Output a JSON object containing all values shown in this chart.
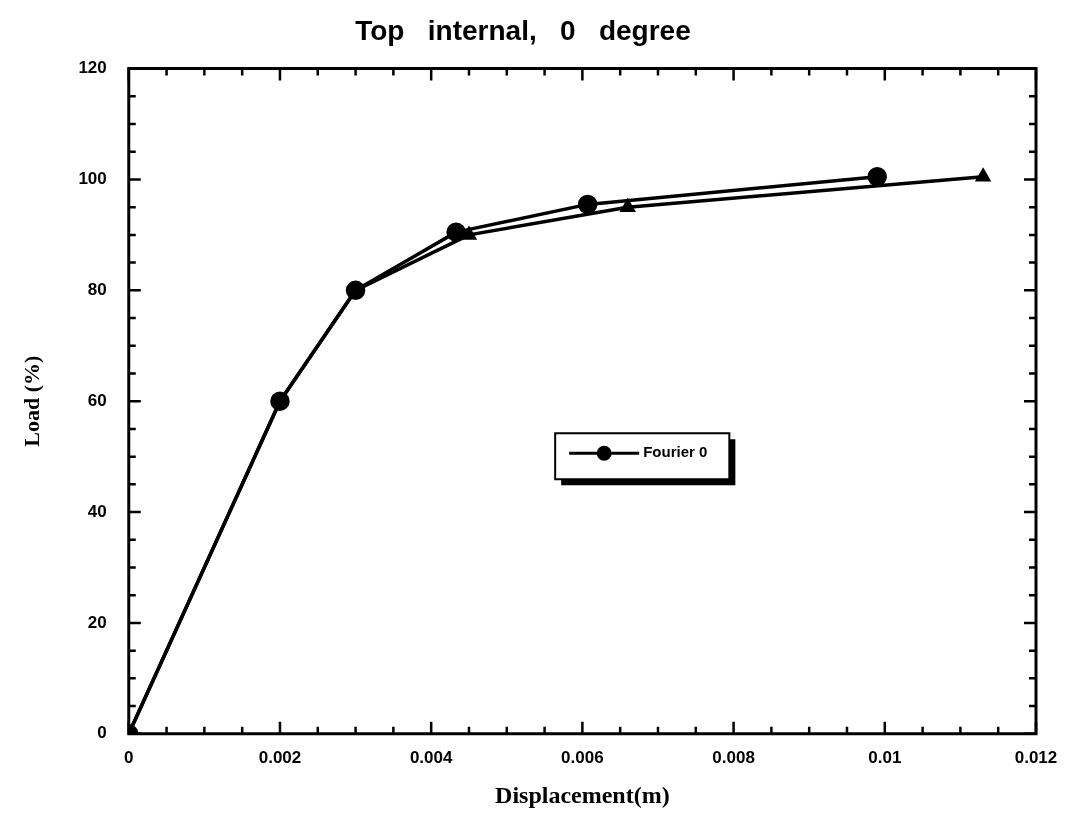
{
  "chart_data": {
    "type": "line",
    "title": "Top   internal,   0   degree",
    "xlabel": "Displacement(m)",
    "ylabel": "Load (%)",
    "xlim": [
      0,
      0.012
    ],
    "ylim": [
      0,
      120
    ],
    "xticks": [
      0,
      {
        "value": 0.0005,
        "label": null
      },
      {
        "value": 0.001,
        "label": null
      },
      {
        "value": 0.0015,
        "label": null
      },
      0.002,
      {
        "value": 0.0025,
        "label": null
      },
      {
        "value": 0.003,
        "label": null
      },
      {
        "value": 0.0035,
        "label": null
      },
      0.004,
      {
        "value": 0.0045,
        "label": null
      },
      {
        "value": 0.005,
        "label": null
      },
      {
        "value": 0.0055,
        "label": null
      },
      0.006,
      {
        "value": 0.0065,
        "label": null
      },
      {
        "value": 0.007,
        "label": null
      },
      {
        "value": 0.0075,
        "label": null
      },
      0.008,
      {
        "value": 0.0085,
        "label": null
      },
      {
        "value": 0.009,
        "label": null
      },
      {
        "value": 0.0095,
        "label": null
      },
      0.01,
      {
        "value": 0.0105,
        "label": null
      },
      {
        "value": 0.011,
        "label": null
      },
      {
        "value": 0.0115,
        "label": null
      },
      0.012
    ],
    "yticks": [
      0,
      {
        "value": 5,
        "label": null
      },
      {
        "value": 10,
        "label": null
      },
      {
        "value": 15,
        "label": null
      },
      20,
      {
        "value": 25,
        "label": null
      },
      {
        "value": 30,
        "label": null
      },
      {
        "value": 35,
        "label": null
      },
      40,
      {
        "value": 45,
        "label": null
      },
      {
        "value": 50,
        "label": null
      },
      {
        "value": 55,
        "label": null
      },
      60,
      {
        "value": 65,
        "label": null
      },
      {
        "value": 70,
        "label": null
      },
      {
        "value": 75,
        "label": null
      },
      80,
      {
        "value": 85,
        "label": null
      },
      {
        "value": 90,
        "label": null
      },
      {
        "value": 95,
        "label": null
      },
      100,
      {
        "value": 105,
        "label": null
      },
      {
        "value": 110,
        "label": null
      },
      {
        "value": 115,
        "label": null
      },
      120
    ],
    "legend": "right",
    "line_style": "solid",
    "series": [
      {
        "name": "Fourier 0",
        "color": "#000000",
        "marker": "circle",
        "x": [
          0,
          0.002,
          0.003,
          0.00433,
          0.00607,
          0.0099
        ],
        "values": [
          0,
          60,
          80,
          90.5,
          95.5,
          100.5
        ]
      },
      {
        "color": "#000000",
        "marker": "triangle",
        "x": [
          0,
          0.002,
          0.003,
          0.0045,
          0.0066,
          0.0113
        ],
        "values": [
          0,
          60,
          80,
          90,
          95,
          100.5
        ]
      }
    ]
  }
}
